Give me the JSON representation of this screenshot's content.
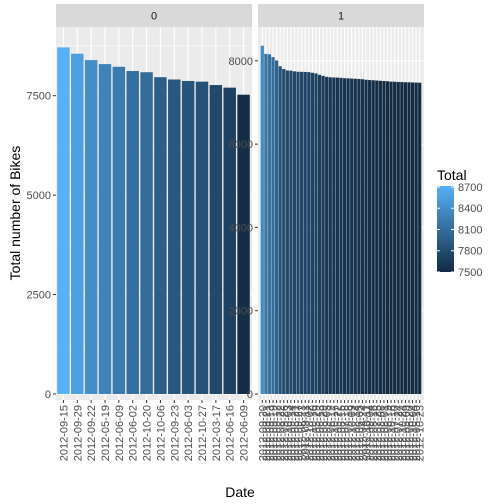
{
  "chart_data": {
    "type": "bar",
    "xlabel": "Date",
    "ylabel": "Total number of Bikes",
    "legend": {
      "title": "Total",
      "placement": "right",
      "breaks": [
        "8700",
        "8400",
        "8100",
        "7800",
        "7500"
      ],
      "break_values": [
        8700,
        8400,
        8100,
        7800,
        7500
      ],
      "color_low": "#132B43",
      "color_high": "#56B1F7",
      "range": [
        7500,
        8714
      ]
    },
    "grid": true,
    "facets": [
      {
        "label": "0",
        "ylim": [
          0,
          8900
        ],
        "yticks": [
          "0",
          "2500",
          "5000",
          "7500"
        ],
        "ytick_values": [
          0,
          2500,
          5000,
          7500
        ],
        "categories": [
          "2012-09-15",
          "2012-09-29",
          "2012-09-22",
          "2012-05-19",
          "2012-06-09",
          "2012-06-02",
          "2012-10-20",
          "2012-10-06",
          "2012-09-23",
          "2012-06-03",
          "2012-10-27",
          "2012-03-17",
          "2012-06-16",
          "2012-06-09"
        ],
        "values": [
          8714,
          8555,
          8395,
          8294,
          8227,
          8120,
          8090,
          7965,
          7907,
          7870,
          7852,
          7767,
          7702,
          7525
        ]
      },
      {
        "label": "1",
        "ylim": [
          0,
          8500
        ],
        "yticks": [
          "0",
          "2000",
          "4000",
          "6000",
          "8000"
        ],
        "ytick_values": [
          0,
          2000,
          4000,
          6000,
          8000
        ],
        "categories": [
          "2012-09-20",
          "2012-09-21",
          "2012-09-13",
          "2012-09-19",
          "2012-09-12",
          "2012-08-22",
          "2012-09-26",
          "2012-10-03",
          "2012-09-14",
          "2012-08-21",
          "2012-09-27",
          "2012-08-23",
          "2012-09-11",
          "2012-10-02",
          "2012-10-10",
          "2012-05-29",
          "2012-06-13",
          "2012-08-29",
          "2012-09-05",
          "2012-06-12",
          "2012-10-17",
          "2012-05-22",
          "2012-08-15",
          "2012-07-18",
          "2012-09-18",
          "2012-10-09",
          "2012-08-14",
          "2012-06-05",
          "2012-04-24",
          "2012-10-11",
          "2012-09-04",
          "2012-08-16",
          "2012-07-25",
          "2012-08-08",
          "2012-08-01",
          "2012-06-19",
          "2012-10-16",
          "2012-07-10",
          "2012-07-24",
          "2012-10-24",
          "2012-05-09",
          "2012-06-20",
          "2012-10-04",
          "2012-05-10",
          "2012-10-23"
        ],
        "values": [
          8362,
          8167,
          8156,
          8090,
          8009,
          7870,
          7804,
          7767,
          7765,
          7747,
          7738,
          7736,
          7733,
          7730,
          7713,
          7698,
          7665,
          7639,
          7616,
          7605,
          7601,
          7598,
          7592,
          7582,
          7580,
          7573,
          7570,
          7565,
          7558,
          7545,
          7538,
          7534,
          7527,
          7520,
          7516,
          7510,
          7500,
          7498,
          7493,
          7490,
          7486,
          7484,
          7480,
          7478,
          7475
        ]
      }
    ]
  }
}
